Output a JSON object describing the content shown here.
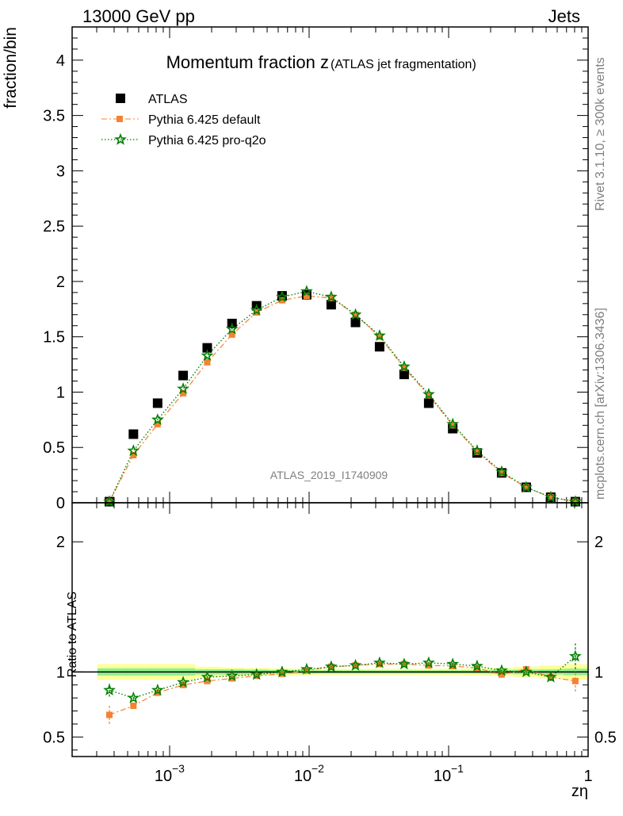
{
  "header": {
    "left": "13000 GeV pp",
    "right": "Jets"
  },
  "side": {
    "rivet": "Rivet 3.1.10, ≥ 300k events",
    "mcplots": "mcplots.cern.ch [arXiv:1306.3436]"
  },
  "chart_data": [
    {
      "panel": "main",
      "type": "scatter",
      "title_main": "Momentum fraction z",
      "title_sub": "(ATLAS jet fragmentation)",
      "ylabel": "fraction/bin",
      "xlabel": "zη",
      "watermark": "ATLAS_2019_I1740909",
      "xscale": "log",
      "xlim": [
        0.0002,
        1.0
      ],
      "ylim": [
        0,
        4.3
      ],
      "yticks": [
        0,
        0.5,
        1,
        1.5,
        2,
        2.5,
        3,
        3.5,
        4
      ],
      "ytick_labels": [
        "0",
        "0.5",
        "1",
        "1.5",
        "2",
        "2.5",
        "3",
        "3.5",
        "4"
      ],
      "xtick_labels": {
        "base": "10",
        "exps": [
          "−3",
          "−2",
          "−1"
        ],
        "one": "1"
      },
      "legend_position": "top-left",
      "x": [
        0.00037,
        0.00055,
        0.00082,
        0.00125,
        0.00186,
        0.0028,
        0.0042,
        0.0064,
        0.0096,
        0.0144,
        0.0215,
        0.032,
        0.048,
        0.072,
        0.107,
        0.16,
        0.24,
        0.36,
        0.54,
        0.81
      ],
      "series": [
        {
          "name": "ATLAS",
          "marker": "square",
          "color": "#000000",
          "values": [
            0.01,
            0.62,
            0.9,
            1.15,
            1.4,
            1.62,
            1.78,
            1.87,
            1.88,
            1.79,
            1.63,
            1.41,
            1.16,
            0.9,
            0.67,
            0.45,
            0.27,
            0.14,
            0.05,
            0.01
          ]
        },
        {
          "name": "Pythia 6.425 default",
          "marker": "square-small",
          "color": "#f58231",
          "dash": "dashdot",
          "values": [
            0.01,
            0.43,
            0.71,
            0.99,
            1.27,
            1.52,
            1.72,
            1.83,
            1.87,
            1.85,
            1.7,
            1.5,
            1.22,
            0.97,
            0.7,
            0.46,
            0.27,
            0.14,
            0.05,
            0.01
          ]
        },
        {
          "name": "Pythia 6.425 pro-q2o",
          "marker": "star",
          "color": "#008000",
          "dash": "dotted",
          "values": [
            0.01,
            0.47,
            0.75,
            1.03,
            1.33,
            1.57,
            1.74,
            1.86,
            1.91,
            1.86,
            1.7,
            1.51,
            1.23,
            0.98,
            0.71,
            0.47,
            0.28,
            0.14,
            0.05,
            0.01
          ]
        }
      ]
    },
    {
      "panel": "ratio",
      "type": "line",
      "ylabel": "Ratio to ATLAS",
      "ylim": [
        0.35,
        2.3
      ],
      "yticks": [
        0.5,
        1,
        2
      ],
      "ytick_labels": [
        "0.5",
        "1",
        "2"
      ],
      "band_colors": {
        "inner": "#8ff08f",
        "outer": "#ffff99"
      },
      "band_inner": [
        0.028,
        0.028,
        0.028,
        0.028,
        0.02,
        0.02,
        0.018,
        0.015,
        0.013,
        0.012,
        0.012,
        0.012,
        0.012,
        0.012,
        0.012,
        0.012,
        0.015,
        0.018,
        0.02,
        0.025
      ],
      "band_outer": [
        0.06,
        0.06,
        0.06,
        0.06,
        0.04,
        0.035,
        0.03,
        0.028,
        0.025,
        0.024,
        0.024,
        0.024,
        0.024,
        0.025,
        0.025,
        0.028,
        0.03,
        0.04,
        0.05,
        0.06
      ],
      "series": [
        {
          "name": "Pythia 6.425 default",
          "color": "#f58231",
          "values": [
            0.67,
            0.74,
            0.84,
            0.9,
            0.93,
            0.95,
            0.97,
            0.985,
            1.01,
            1.04,
            1.05,
            1.06,
            1.06,
            1.05,
            1.045,
            1.03,
            0.98,
            1.02,
            0.96,
            0.93
          ],
          "err_low": [
            0.07,
            0.01,
            0.01,
            0.01,
            0.01,
            0.005,
            0.005,
            0.005,
            0.005,
            0.005,
            0.005,
            0.005,
            0.005,
            0.005,
            0.01,
            0.01,
            0.01,
            0.01,
            0.03,
            0.08
          ],
          "err_high": [
            0.07,
            0.01,
            0.01,
            0.01,
            0.01,
            0.005,
            0.005,
            0.005,
            0.005,
            0.005,
            0.005,
            0.005,
            0.005,
            0.005,
            0.01,
            0.01,
            0.01,
            0.01,
            0.03,
            0.08
          ]
        },
        {
          "name": "Pythia 6.425 pro-q2o",
          "color": "#008000",
          "values": [
            0.86,
            0.8,
            0.86,
            0.92,
            0.96,
            0.97,
            0.98,
            1.0,
            1.02,
            1.04,
            1.05,
            1.07,
            1.06,
            1.07,
            1.06,
            1.045,
            1.01,
            1.0,
            0.96,
            1.12
          ],
          "err_low": [
            0.05,
            0.01,
            0.01,
            0.01,
            0.01,
            0.005,
            0.005,
            0.005,
            0.005,
            0.005,
            0.005,
            0.005,
            0.005,
            0.005,
            0.01,
            0.01,
            0.01,
            0.01,
            0.03,
            0.1
          ],
          "err_high": [
            0.05,
            0.01,
            0.01,
            0.01,
            0.01,
            0.005,
            0.005,
            0.005,
            0.005,
            0.005,
            0.005,
            0.005,
            0.005,
            0.005,
            0.01,
            0.01,
            0.01,
            0.01,
            0.03,
            0.1
          ]
        }
      ]
    }
  ]
}
